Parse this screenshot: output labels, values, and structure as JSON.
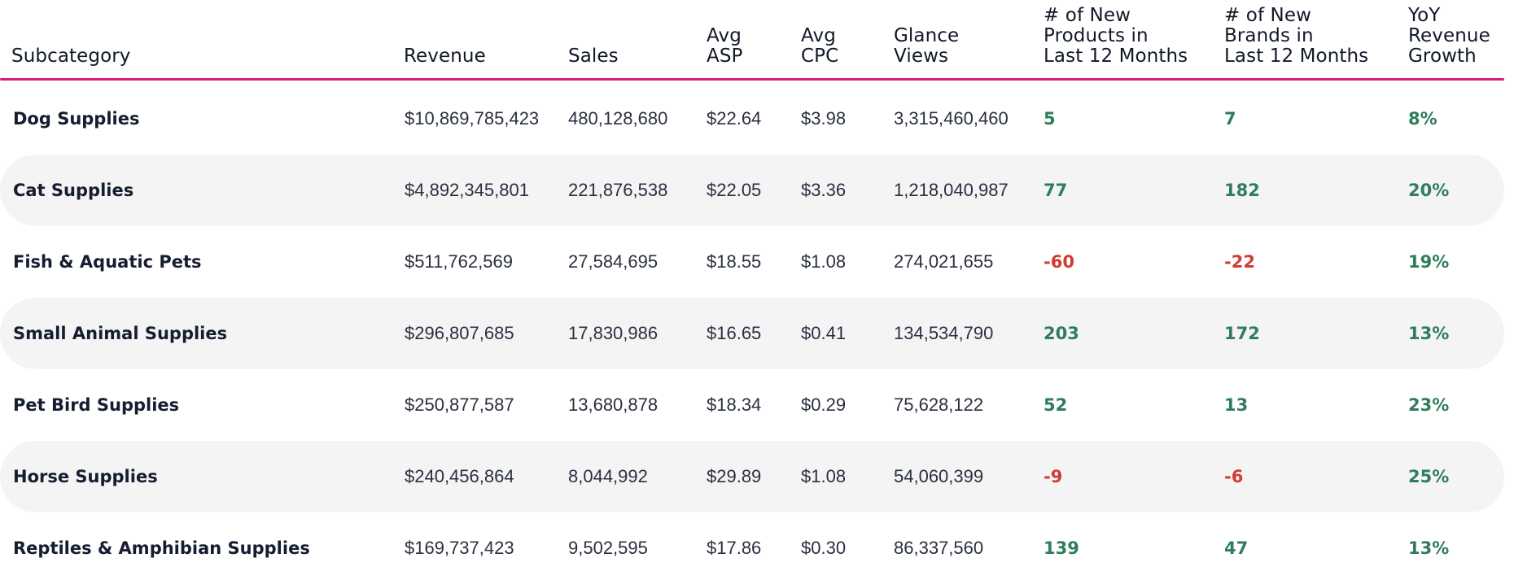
{
  "chart_data": {
    "type": "table",
    "columns": [
      "Subcategory",
      "Revenue",
      "Sales",
      "Avg\nASP",
      "Avg\nCPC",
      "Glance\nViews",
      "# of New\nProducts in\nLast 12 Months",
      "# of New\nBrands in\nLast 12 Months",
      "YoY\nRevenue\nGrowth"
    ],
    "rows": [
      [
        "Dog Supplies",
        "$10,869,785,423",
        "480,128,680",
        "$22.64",
        "$3.98",
        "3,315,460,460",
        "5",
        "7",
        "8%"
      ],
      [
        "Cat Supplies",
        "$4,892,345,801",
        "221,876,538",
        "$22.05",
        "$3.36",
        "1,218,040,987",
        "77",
        "182",
        "20%"
      ],
      [
        "Fish & Aquatic Pets",
        "$511,762,569",
        "27,584,695",
        "$18.55",
        "$1.08",
        "274,021,655",
        "-60",
        "-22",
        "19%"
      ],
      [
        "Small Animal Supplies",
        "$296,807,685",
        "17,830,986",
        "$16.65",
        "$0.41",
        "134,534,790",
        "203",
        "172",
        "13%"
      ],
      [
        "Pet Bird Supplies",
        "$250,877,587",
        "13,680,878",
        "$18.34",
        "$0.29",
        "75,628,122",
        "52",
        "13",
        "23%"
      ],
      [
        "Horse Supplies",
        "$240,456,864",
        "8,044,992",
        "$29.89",
        "$1.08",
        "54,060,399",
        "-9",
        "-6",
        "25%"
      ],
      [
        "Reptiles & Amphibian Supplies",
        "$169,737,423",
        "9,502,595",
        "$17.86",
        "$0.30",
        "86,337,560",
        "139",
        "47",
        "13%"
      ]
    ]
  },
  "colors": {
    "divider": "#d51c82",
    "positive": "#2f7d5b",
    "negative": "#d23b32",
    "row_shade": "#f4f4f5"
  }
}
